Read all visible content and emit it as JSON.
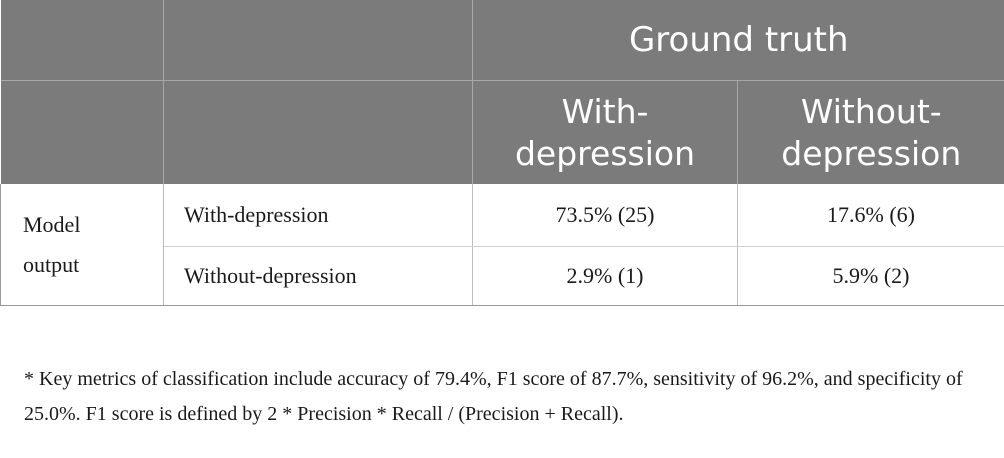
{
  "table": {
    "header": {
      "group_label": "Ground truth",
      "columns": [
        "With-\ndepression",
        "Without-\ndepression"
      ]
    },
    "row_group_label": "Model\noutput",
    "rows": [
      {
        "label": "With-depression",
        "cells": [
          "73.5% (25)",
          "17.6% (6)"
        ]
      },
      {
        "label": "Without-depression",
        "cells": [
          "2.9% (1)",
          "5.9% (2)"
        ]
      }
    ]
  },
  "footnote": "* Key metrics of classification include accuracy of 79.4%, F1 score of 87.7%, sensitivity of 96.2%, and specificity of 25.0%. F1 score is defined by 2 * Precision * Recall / (Precision + Recall).",
  "colors": {
    "header_bg": "#7b7b7b",
    "header_text": "#ffffff",
    "border": "#9a9a9a"
  }
}
